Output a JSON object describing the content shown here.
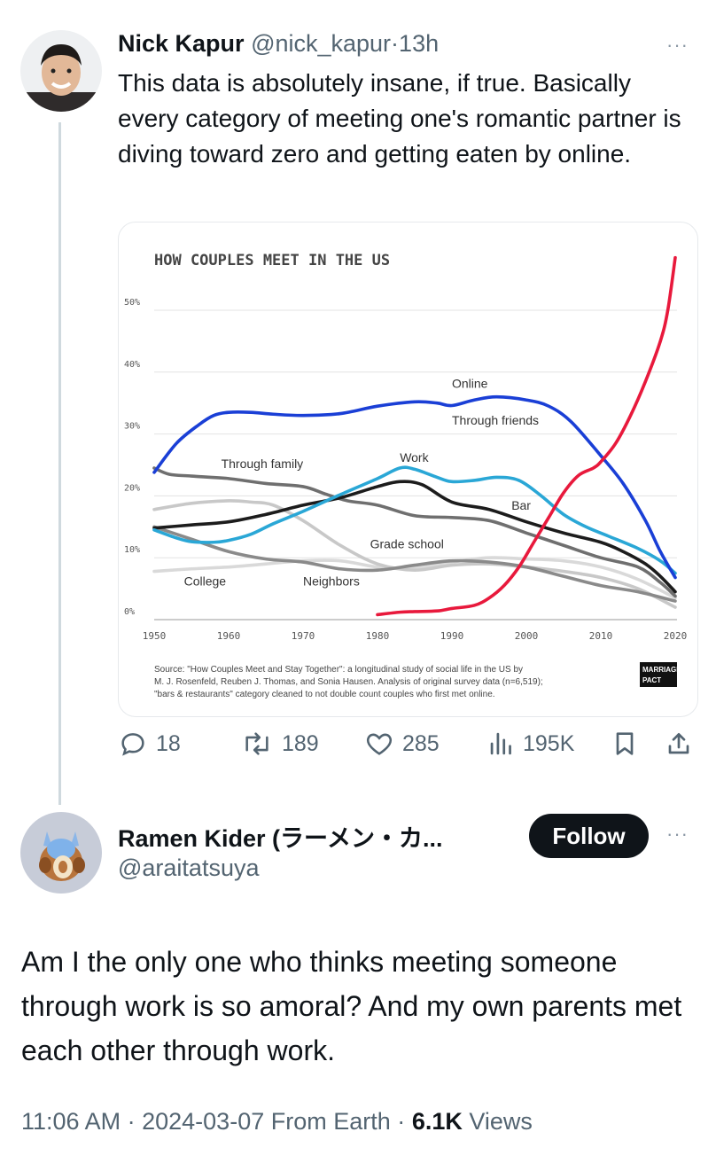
{
  "tweet": {
    "author_name": "Nick Kapur",
    "author_handle": "@nick_kapur",
    "separator": "·",
    "time": "13h",
    "more": "···",
    "text": "This data is absolutely insane, if true. Basically every category of meeting one's romantic partner is diving toward zero and getting eaten by online."
  },
  "actions": {
    "replies": "18",
    "retweets": "189",
    "likes": "285",
    "views": "195K"
  },
  "reply": {
    "author_name": "Ramen Kider (ラーメン・カ...",
    "author_handle": "@araitatsuya",
    "follow_label": "Follow",
    "more": "···",
    "text": "Am I the only one who thinks meeting someone through work is so amoral? And my own parents met each other through work.",
    "time": "11:06 AM",
    "date": "2024-03-07",
    "location": "From Earth",
    "views_count": "6.1K",
    "views_label": "Views",
    "dot": "·"
  },
  "chart_data": {
    "type": "line",
    "title": "HOW COUPLES MEET IN THE US",
    "xlim": [
      1950,
      2020
    ],
    "ylim": [
      0,
      55
    ],
    "x_ticks": [
      "1950",
      "1960",
      "1970",
      "1980",
      "1990",
      "2000",
      "2010",
      "2020"
    ],
    "y_ticks": [
      "0%",
      "10%",
      "20%",
      "30%",
      "40%",
      "50%"
    ],
    "grid": true,
    "series": [
      {
        "name": "Online",
        "color": "#e8193c",
        "label_at": [
          1990,
          37.5
        ],
        "x": [
          1980,
          1983,
          1985,
          1988,
          1990,
          1993,
          1995,
          1997,
          1999,
          2001,
          2003,
          2005,
          2007,
          2009,
          2010,
          2012,
          2014,
          2016,
          2018,
          2019,
          2020
        ],
        "y": [
          0.8,
          1.2,
          1.3,
          1.4,
          1.8,
          2.3,
          3.5,
          5.5,
          8.5,
          12.5,
          16.5,
          20.5,
          23.3,
          24.5,
          25.5,
          28.5,
          33,
          38.5,
          45,
          50,
          58.5
        ]
      },
      {
        "name": "Through friends",
        "color": "#1a3fd6",
        "label_at": [
          1990,
          31.5
        ],
        "x": [
          1950,
          1953,
          1956,
          1958,
          1960,
          1963,
          1966,
          1970,
          1975,
          1980,
          1985,
          1988,
          1990,
          1993,
          1996,
          2000,
          2003,
          2006,
          2010,
          2013,
          2016,
          2018,
          2020
        ],
        "y": [
          23.8,
          28.5,
          31.5,
          33,
          33.5,
          33.5,
          33.2,
          33,
          33.3,
          34.5,
          35.2,
          35,
          34.6,
          35.5,
          36,
          35.5,
          34.5,
          32,
          26.5,
          22,
          16,
          11,
          6.8
        ]
      },
      {
        "name": "Work",
        "color": "#2aa7d6",
        "label_at": [
          1983,
          25.5
        ],
        "x": [
          1950,
          1953,
          1955,
          1958,
          1960,
          1963,
          1966,
          1970,
          1975,
          1980,
          1983,
          1985,
          1988,
          1990,
          1993,
          1996,
          1999,
          2002,
          2005,
          2008,
          2011,
          2015,
          2018,
          2020
        ],
        "y": [
          14.5,
          13.2,
          12.6,
          12.5,
          12.8,
          13.8,
          15.5,
          17.5,
          20.2,
          22.8,
          24.5,
          24.3,
          23,
          22.3,
          22.5,
          23,
          22.5,
          20,
          17,
          15,
          13.5,
          11.5,
          9.5,
          7.5
        ]
      },
      {
        "name": "Bar",
        "color": "#1c1c1c",
        "label_at": [
          1998,
          17.8
        ],
        "x": [
          1950,
          1955,
          1960,
          1965,
          1970,
          1975,
          1980,
          1983,
          1986,
          1990,
          1995,
          2000,
          2005,
          2010,
          2013,
          2016,
          2018,
          2020
        ],
        "y": [
          14.8,
          15.3,
          15.8,
          17,
          18.5,
          19.7,
          21.5,
          22.3,
          21.8,
          19,
          17.8,
          15.8,
          14,
          12.5,
          11,
          9,
          7,
          4.5
        ]
      },
      {
        "name": "Through family",
        "color": "#6f6f6f",
        "label_at": [
          1959,
          24.5
        ],
        "x": [
          1950,
          1952,
          1955,
          1960,
          1965,
          1970,
          1973,
          1976,
          1980,
          1985,
          1990,
          1995,
          2000,
          2005,
          2010,
          2015,
          2018,
          2020
        ],
        "y": [
          24.5,
          23.5,
          23.2,
          22.8,
          22,
          21.5,
          20.3,
          19.2,
          18.5,
          16.8,
          16.5,
          16,
          14,
          12,
          10,
          8.5,
          6,
          3.8
        ]
      },
      {
        "name": "Grade school",
        "color": "#c8c8c8",
        "label_at": [
          1979,
          11.5
        ],
        "x": [
          1950,
          1955,
          1960,
          1963,
          1966,
          1970,
          1975,
          1980,
          1985,
          1990,
          1995,
          2000,
          2005,
          2010,
          2015,
          2020
        ],
        "y": [
          17.8,
          18.8,
          19.2,
          19,
          18.5,
          16,
          12,
          9,
          8,
          8.8,
          9,
          8.5,
          7.8,
          6.8,
          5,
          2
        ]
      },
      {
        "name": "College",
        "color": "#d9d9d9",
        "label_at": [
          1954,
          5.5
        ],
        "x": [
          1950,
          1955,
          1960,
          1965,
          1970,
          1975,
          1980,
          1985,
          1990,
          1995,
          2000,
          2005,
          2010,
          2015,
          2020
        ],
        "y": [
          7.8,
          8.2,
          8.5,
          9,
          9.5,
          9.5,
          8.5,
          8.3,
          9.3,
          10,
          9.8,
          9.5,
          8.5,
          6.5,
          3.5
        ]
      },
      {
        "name": "Neighbors",
        "color": "#8a8a8a",
        "label_at": [
          1970,
          5.5
        ],
        "x": [
          1950,
          1955,
          1960,
          1965,
          1970,
          1975,
          1980,
          1985,
          1990,
          1995,
          2000,
          2005,
          2010,
          2015,
          2020
        ],
        "y": [
          15,
          13,
          11,
          9.8,
          9.3,
          8.2,
          8,
          8.8,
          9.5,
          9.3,
          8.5,
          7,
          5.5,
          4.5,
          3
        ]
      }
    ],
    "source": [
      "Source: \"How Couples Meet and Stay Together\": a longitudinal study of social life in the US by",
      "M. J. Rosenfeld, Reuben J. Thomas, and Sonia Hausen. Analysis of original survey data (n=6,519);",
      "\"bars & restaurants\" category cleaned to not double count couples who first met online."
    ],
    "logo": [
      "MARRIAGE",
      "PACT"
    ]
  },
  "colors": {
    "accent": "#1d9bf0",
    "text": "#0f1419",
    "muted": "#536471",
    "online": "#e8193c",
    "friends": "#1a3fd6",
    "work": "#2aa7d6"
  },
  "icons": [
    "reply-icon",
    "retweet-icon",
    "like-icon",
    "views-icon",
    "bookmark-icon",
    "share-icon"
  ]
}
